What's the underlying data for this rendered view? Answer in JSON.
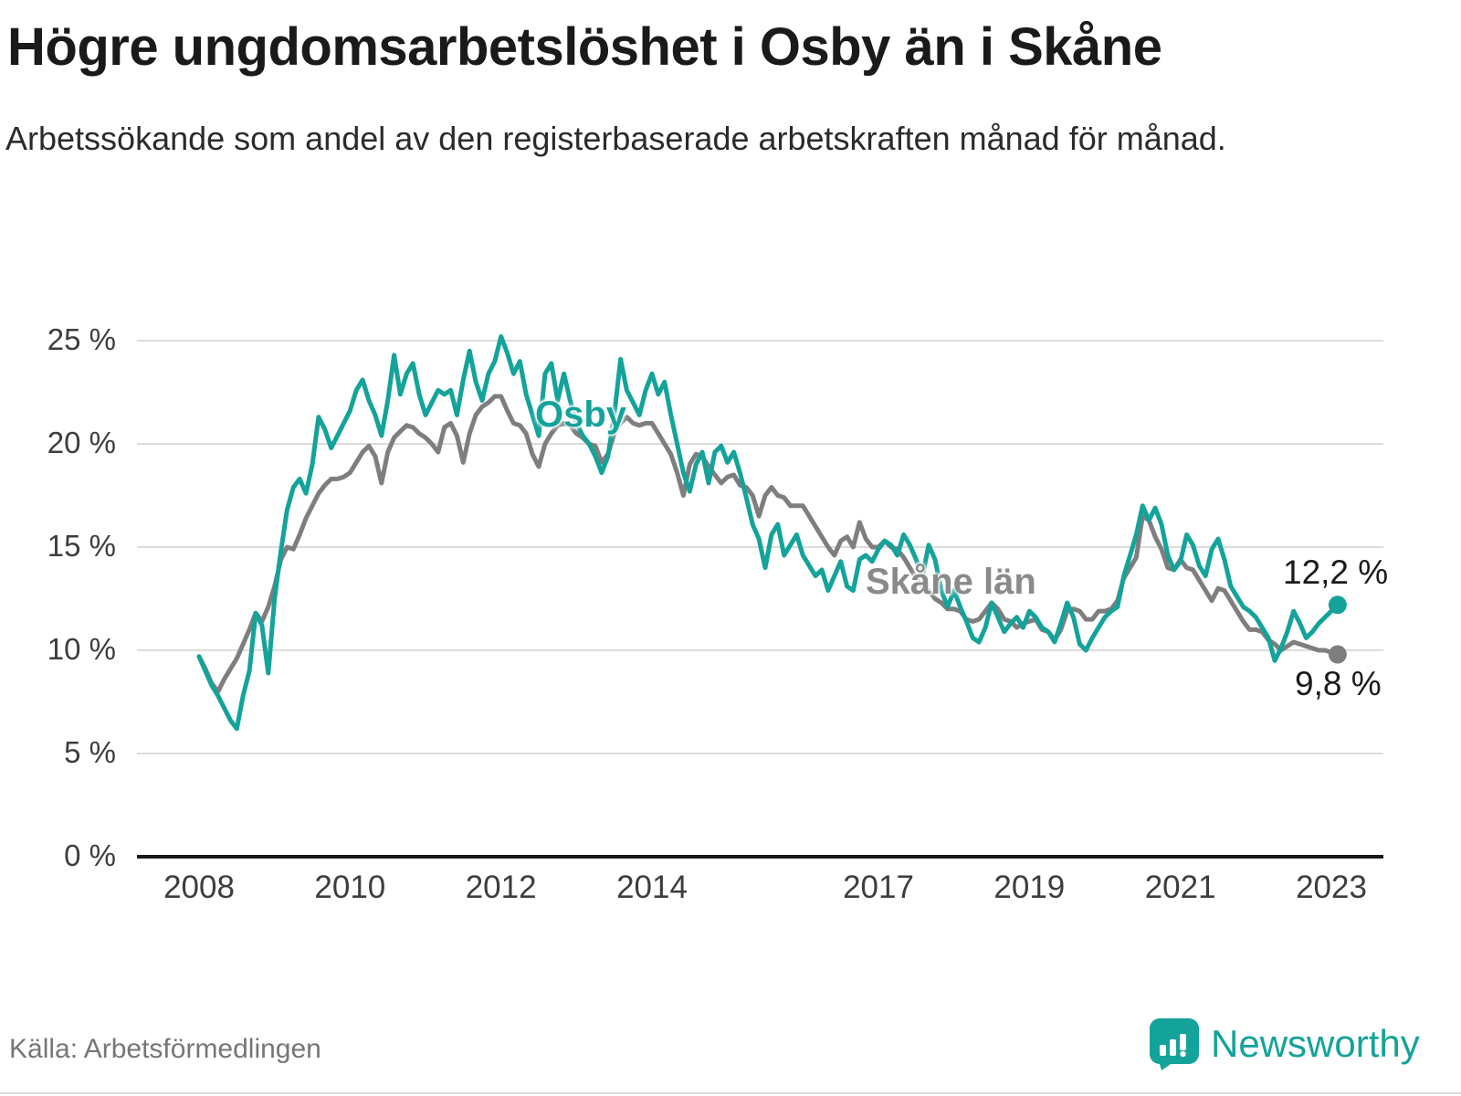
{
  "header": {
    "title": "Högre ungdomsarbetslöshet i Osby än i Skåne",
    "subtitle": "Arbetssökande som andel av den registerbaserade arbetskraften månad för månad."
  },
  "annotations": {
    "osby_label": "Osby",
    "skane_label": "Skåne län",
    "osby_end_value": "12,2 %",
    "skane_end_value": "9,8 %"
  },
  "footer": {
    "source": "Källa: Arbetsförmedlingen",
    "brand": "Newsworthy"
  },
  "colors": {
    "osby": "#14A39A",
    "skane": "#7E7E7E",
    "brand": "#14A39A",
    "gridline": "#dcdcdc",
    "axis": "#1a1a1a"
  },
  "chart_data": {
    "type": "line",
    "title": "Högre ungdomsarbetslöshet i Osby än i Skåne",
    "subtitle": "Arbetssökande som andel av den registerbaserade arbetskraften månad för månad.",
    "x_unit": "month",
    "x_start_year": 2008,
    "x_end": "2023-02",
    "ylim": [
      0,
      26
    ],
    "yticks": [
      0,
      5,
      10,
      15,
      20,
      25
    ],
    "ytick_suffix": " %",
    "xticks": [
      2008,
      2010,
      2012,
      2014,
      2017,
      2019,
      2021,
      2023
    ],
    "grid": "horizontal",
    "legend": "inline-labels",
    "series": [
      {
        "name": "Skåne län",
        "color": "#7E7E7E",
        "end_value": 9.8,
        "values": [
          9.7,
          9.1,
          8.4,
          8.0,
          8.6,
          9.1,
          9.6,
          10.3,
          11.0,
          11.8,
          11.4,
          12.1,
          13.1,
          14.4,
          15.0,
          14.9,
          15.6,
          16.4,
          17.0,
          17.6,
          18.0,
          18.3,
          18.3,
          18.4,
          18.6,
          19.1,
          19.6,
          19.9,
          19.4,
          18.1,
          19.6,
          20.3,
          20.6,
          20.9,
          20.8,
          20.5,
          20.3,
          20.0,
          19.6,
          20.8,
          21.0,
          20.4,
          19.1,
          20.5,
          21.4,
          21.8,
          22.0,
          22.3,
          22.3,
          21.6,
          21.0,
          20.9,
          20.5,
          19.5,
          18.9,
          20.0,
          20.5,
          20.9,
          21.0,
          20.9,
          20.5,
          20.3,
          20.0,
          19.9,
          19.1,
          19.5,
          20.5,
          21.0,
          21.3,
          21.0,
          20.9,
          21.0,
          21.0,
          20.5,
          20.0,
          19.5,
          18.6,
          17.5,
          19.0,
          19.5,
          19.4,
          18.9,
          18.5,
          18.1,
          18.4,
          18.5,
          18.0,
          17.9,
          17.5,
          16.5,
          17.5,
          17.9,
          17.5,
          17.4,
          17.0,
          17.0,
          17.0,
          16.5,
          16.0,
          15.5,
          15.0,
          14.6,
          15.3,
          15.5,
          15.0,
          16.2,
          15.4,
          15.0,
          15.0,
          15.3,
          15.0,
          14.9,
          14.5,
          14.0,
          13.5,
          13.1,
          12.9,
          12.5,
          12.3,
          12.0,
          12.0,
          11.9,
          11.5,
          11.4,
          11.5,
          11.9,
          12.3,
          12.0,
          11.5,
          11.4,
          11.1,
          11.3,
          11.4,
          11.5,
          11.0,
          10.9,
          10.5,
          11.0,
          11.9,
          12.0,
          11.9,
          11.5,
          11.5,
          11.9,
          11.9,
          12.0,
          12.4,
          13.5,
          14.0,
          14.5,
          16.5,
          16.3,
          15.5,
          14.9,
          14.0,
          13.9,
          14.4,
          14.0,
          13.9,
          13.4,
          12.9,
          12.4,
          13.0,
          12.9,
          12.4,
          11.9,
          11.4,
          11.0,
          11.0,
          10.9,
          10.5,
          10.3,
          10.0,
          10.2,
          10.4,
          10.3,
          10.2,
          10.1,
          10.0,
          10.0,
          9.9,
          9.8
        ]
      },
      {
        "name": "Osby",
        "color": "#14A39A",
        "end_value": 12.2,
        "values": [
          9.7,
          9.0,
          8.3,
          7.8,
          7.2,
          6.6,
          6.2,
          7.8,
          9.0,
          11.8,
          11.2,
          8.9,
          12.5,
          14.8,
          16.8,
          17.9,
          18.3,
          17.6,
          19.0,
          21.3,
          20.7,
          19.8,
          20.4,
          21.0,
          21.6,
          22.6,
          23.1,
          22.1,
          21.4,
          20.4,
          22.1,
          24.3,
          22.4,
          23.4,
          23.9,
          22.4,
          21.4,
          22.0,
          22.6,
          22.4,
          22.6,
          21.4,
          23.1,
          24.5,
          23.0,
          22.1,
          23.4,
          24.0,
          25.2,
          24.4,
          23.4,
          24.0,
          22.4,
          21.4,
          20.4,
          23.4,
          23.9,
          22.1,
          23.4,
          22.1,
          21.0,
          20.4,
          20.0,
          19.4,
          18.6,
          19.4,
          21.4,
          24.1,
          22.6,
          22.0,
          21.4,
          22.6,
          23.4,
          22.4,
          23.0,
          21.4,
          20.0,
          18.6,
          17.7,
          19.0,
          19.6,
          18.1,
          19.6,
          19.9,
          19.1,
          19.6,
          18.6,
          17.4,
          16.1,
          15.4,
          14.0,
          15.6,
          16.1,
          14.6,
          15.1,
          15.6,
          14.6,
          14.1,
          13.6,
          13.9,
          12.9,
          13.6,
          14.3,
          13.1,
          12.9,
          14.4,
          14.6,
          14.3,
          14.9,
          15.3,
          15.1,
          14.6,
          15.6,
          15.1,
          14.4,
          13.6,
          15.1,
          14.4,
          12.9,
          12.1,
          12.9,
          12.1,
          11.4,
          10.6,
          10.4,
          11.1,
          12.3,
          11.6,
          10.9,
          11.3,
          11.6,
          11.1,
          11.9,
          11.6,
          11.1,
          10.9,
          10.4,
          11.3,
          12.3,
          11.6,
          10.3,
          10.0,
          10.6,
          11.1,
          11.6,
          11.9,
          12.1,
          13.6,
          14.6,
          15.6,
          17.0,
          16.3,
          16.9,
          16.1,
          14.6,
          13.9,
          14.3,
          15.6,
          15.1,
          14.1,
          13.6,
          14.9,
          15.4,
          14.4,
          13.1,
          12.6,
          12.1,
          11.9,
          11.6,
          11.1,
          10.6,
          9.5,
          10.1,
          10.9,
          11.9,
          11.3,
          10.6,
          10.9,
          11.3,
          11.6,
          11.9,
          12.2
        ]
      }
    ]
  }
}
